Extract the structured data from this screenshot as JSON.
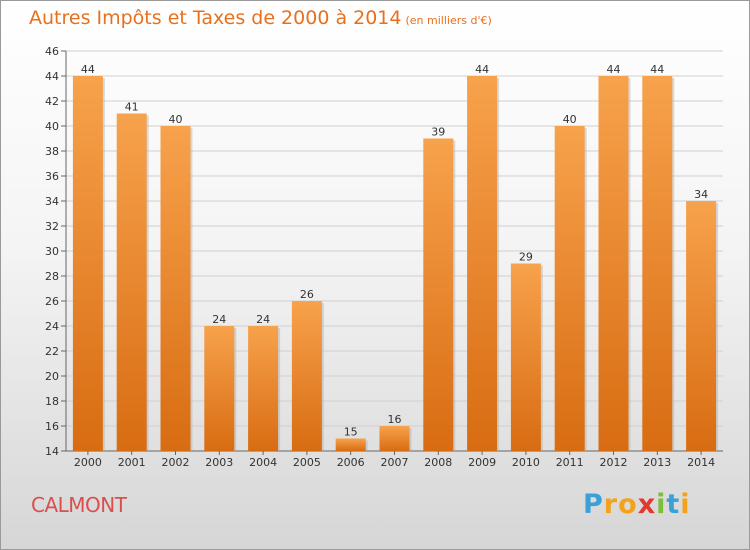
{
  "chart_data": {
    "type": "bar",
    "title": "Autres Impôts et Taxes de 2000 à 2014",
    "subtitle": "(en milliers d'€)",
    "categories": [
      "2000",
      "2001",
      "2002",
      "2003",
      "2004",
      "2005",
      "2006",
      "2007",
      "2008",
      "2009",
      "2010",
      "2011",
      "2012",
      "2013",
      "2014"
    ],
    "values": [
      44,
      41,
      40,
      24,
      24,
      26,
      15,
      16,
      39,
      44,
      29,
      40,
      44,
      44,
      34
    ],
    "ylim": [
      14,
      46
    ],
    "yticks": [
      14,
      16,
      18,
      20,
      22,
      24,
      26,
      28,
      30,
      32,
      34,
      36,
      38,
      40,
      42,
      44,
      46
    ],
    "grid": true,
    "bar_color": "#f08a2a"
  },
  "commune": "CALMONT",
  "logo": {
    "letters": [
      "P",
      "r",
      "o",
      "x",
      "i",
      "t",
      "i"
    ],
    "colors": [
      "#3aa0d8",
      "#f2a31b",
      "#f2a31b",
      "#e03a2f",
      "#7cbf3a",
      "#3aa0d8",
      "#f2a31b"
    ]
  }
}
